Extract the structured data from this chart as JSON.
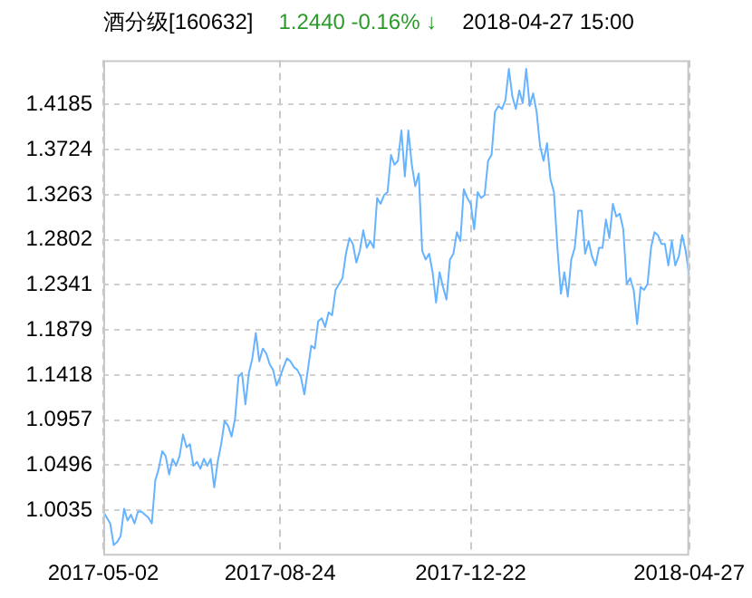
{
  "chart_data": {
    "type": "line",
    "title": "酒分级[160632]",
    "subtitle": "1.2440  -0.16% ↓",
    "annotations": [
      "2018-04-27 15:00"
    ],
    "categories": [
      "2017-05-02",
      null,
      null,
      null,
      null,
      null,
      null,
      null,
      null,
      null,
      null,
      null,
      null,
      null,
      null,
      null,
      null,
      null,
      null,
      null,
      null,
      null,
      null,
      null,
      null,
      null,
      null,
      null,
      null,
      null,
      null,
      null,
      null,
      null,
      null,
      null,
      null,
      null,
      null,
      null,
      null,
      null,
      null,
      null,
      null,
      null,
      null,
      null,
      null,
      null,
      null,
      "2017-08-24",
      null,
      null,
      null,
      null,
      null,
      null,
      null,
      null,
      null,
      null,
      null,
      null,
      null,
      null,
      null,
      null,
      null,
      null,
      null,
      null,
      null,
      null,
      null,
      null,
      null,
      null,
      null,
      null,
      null,
      null,
      null,
      null,
      null,
      null,
      null,
      null,
      null,
      null,
      null,
      null,
      null,
      null,
      null,
      null,
      null,
      null,
      null,
      null,
      null,
      null,
      null,
      null,
      null,
      null,
      "2017-12-22",
      null,
      null,
      null,
      null,
      null,
      null,
      null,
      null,
      null,
      null,
      null,
      null,
      null,
      null,
      null,
      null,
      null,
      null,
      null,
      null,
      null,
      null,
      null,
      null,
      null,
      null,
      null,
      null,
      null,
      null,
      null,
      null,
      null,
      null,
      null,
      null,
      null,
      null,
      null,
      null,
      null,
      null,
      null,
      null,
      null,
      null,
      null,
      null,
      null,
      null,
      null,
      null,
      null,
      null,
      null,
      null,
      null,
      null,
      null,
      null,
      null,
      null,
      "2018-04-27"
    ],
    "series": [
      {
        "color": "#66b3ff",
        "values": [
          1.002,
          0.996,
          0.99,
          0.968,
          0.971,
          0.977,
          1.005,
          0.993,
          0.999,
          0.99,
          1.002,
          1.002,
          0.999,
          0.996,
          0.99,
          1.034,
          1.046,
          1.064,
          1.059,
          1.04,
          1.056,
          1.049,
          1.059,
          1.081,
          1.068,
          1.071,
          1.049,
          1.053,
          1.046,
          1.056,
          1.049,
          1.056,
          1.027,
          1.053,
          1.071,
          1.095,
          1.09,
          1.079,
          1.097,
          1.14,
          1.144,
          1.112,
          1.144,
          1.159,
          1.185,
          1.156,
          1.169,
          1.164,
          1.153,
          1.147,
          1.131,
          1.14,
          1.15,
          1.159,
          1.156,
          1.15,
          1.147,
          1.14,
          1.122,
          1.147,
          1.172,
          1.169,
          1.197,
          1.2,
          1.191,
          1.206,
          1.203,
          1.229,
          1.235,
          1.241,
          1.266,
          1.282,
          1.276,
          1.257,
          1.269,
          1.29,
          1.272,
          1.279,
          1.272,
          1.323,
          1.317,
          1.326,
          1.329,
          1.367,
          1.357,
          1.361,
          1.392,
          1.345,
          1.392,
          1.357,
          1.335,
          1.348,
          1.269,
          1.26,
          1.266,
          1.247,
          1.216,
          1.247,
          1.232,
          1.219,
          1.26,
          1.266,
          1.288,
          1.279,
          1.332,
          1.323,
          1.317,
          1.291,
          1.329,
          1.323,
          1.326,
          1.361,
          1.367,
          1.411,
          1.417,
          1.414,
          1.423,
          1.455,
          1.427,
          1.414,
          1.433,
          1.42,
          1.455,
          1.417,
          1.43,
          1.411,
          1.376,
          1.361,
          1.379,
          1.342,
          1.329,
          1.272,
          1.225,
          1.247,
          1.222,
          1.26,
          1.272,
          1.31,
          1.31,
          1.266,
          1.279,
          1.263,
          1.254,
          1.272,
          1.272,
          1.301,
          1.282,
          1.317,
          1.304,
          1.307,
          1.291,
          1.235,
          1.241,
          1.229,
          1.194,
          1.232,
          1.229,
          1.235,
          1.272,
          1.288,
          1.285,
          1.276,
          1.276,
          1.254,
          1.279,
          1.254,
          1.263,
          1.285,
          1.269,
          1.244
        ]
      }
    ],
    "ylim": [
      0.959,
      1.464
    ],
    "yticks": [
      1.0035,
      1.0496,
      1.0957,
      1.1418,
      1.1879,
      1.2341,
      1.2802,
      1.3263,
      1.3724,
      1.4185
    ],
    "grid": true,
    "marker": "none",
    "line_style": "solid"
  }
}
